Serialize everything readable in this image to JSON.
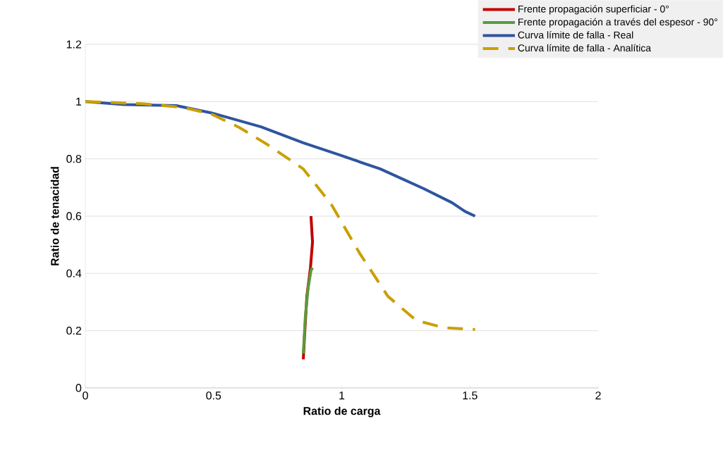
{
  "chart_data": {
    "type": "line",
    "xlabel": "Ratio de carga",
    "ylabel": "Ratio de tenacidad",
    "xlim": [
      0,
      2
    ],
    "ylim": [
      0,
      1.2
    ],
    "xticks": [
      0,
      0.5,
      1,
      1.5,
      2
    ],
    "yticks": [
      0,
      0.2,
      0.4,
      0.6,
      0.8,
      1,
      1.2
    ],
    "grid": "y",
    "legend": "top right",
    "marker": "none",
    "series": [
      {
        "name": "Frente propagación superficiar - 0°",
        "color": "#c00000",
        "line_style": "solid",
        "x": [
          0.85,
          0.856,
          0.864,
          0.878,
          0.886,
          0.88
        ],
        "values": [
          0.1,
          0.2,
          0.32,
          0.42,
          0.51,
          0.6
        ]
      },
      {
        "name": "Frente propagación a través del espesor - 90°",
        "color": "#5b9a3c",
        "line_style": "solid",
        "x": [
          0.85,
          0.858,
          0.869,
          0.88,
          0.886
        ],
        "values": [
          0.12,
          0.25,
          0.35,
          0.41,
          0.42
        ]
      },
      {
        "name": "Curva límite de falla - Real",
        "color": "#2f559f",
        "line_style": "solid",
        "x": [
          0,
          0.15,
          0.355,
          0.49,
          0.685,
          0.85,
          0.99,
          1.15,
          1.32,
          1.43,
          1.48,
          1.52
        ],
        "values": [
          1.0,
          0.99,
          0.986,
          0.961,
          0.912,
          0.856,
          0.814,
          0.765,
          0.696,
          0.647,
          0.617,
          0.6
        ]
      },
      {
        "name": "Curva límite de falla - Analítica",
        "color": "#c9a000",
        "line_style": "dashed",
        "x": [
          0,
          0.22,
          0.38,
          0.49,
          0.6,
          0.71,
          0.85,
          0.96,
          1.07,
          1.18,
          1.29,
          1.4,
          1.52
        ],
        "values": [
          1.0,
          0.993,
          0.98,
          0.957,
          0.91,
          0.85,
          0.765,
          0.64,
          0.47,
          0.32,
          0.236,
          0.21,
          0.204
        ]
      }
    ]
  }
}
